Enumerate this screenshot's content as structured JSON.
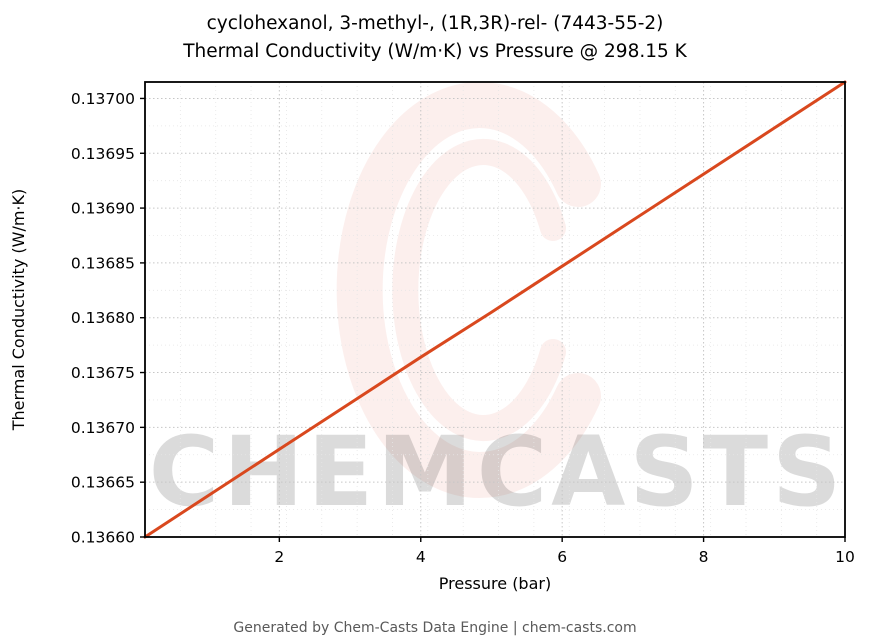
{
  "title_line1": "cyclohexanol, 3-methyl-, (1R,3R)-rel- (7443-55-2)",
  "title_line2": "Thermal Conductivity (W/m·K) vs Pressure @ 298.15 K",
  "footer": "Generated by Chem-Casts Data Engine | chem-casts.com",
  "watermark": {
    "text": "CHEMCASTS",
    "color": "#de5032",
    "text_opacity": 0.14,
    "logo_opacity": 0.09
  },
  "chart_data": {
    "type": "line",
    "title": "cyclohexanol, 3-methyl-, (1R,3R)-rel- (7443-55-2) — Thermal Conductivity (W/m·K) vs Pressure @ 298.15 K",
    "xlabel": "Pressure (bar)",
    "ylabel": "Thermal Conductivity (W/m·K)",
    "xlim": [
      0.1,
      10
    ],
    "ylim": [
      0.1366,
      0.137015
    ],
    "x_ticks": [
      2,
      4,
      6,
      8,
      10
    ],
    "x_tick_labels": [
      "2",
      "4",
      "6",
      "8",
      "10"
    ],
    "y_ticks": [
      0.1366,
      0.13665,
      0.1367,
      0.13675,
      0.1368,
      0.13685,
      0.1369,
      0.13695,
      0.137
    ],
    "y_tick_labels": [
      "0.13660",
      "0.13665",
      "0.13670",
      "0.13675",
      "0.13680",
      "0.13685",
      "0.13690",
      "0.13695",
      "0.13700"
    ],
    "x_minor_step": 0.5,
    "y_minor_step": 2.5e-05,
    "grid": true,
    "legend": false,
    "line_color": "#d9481e",
    "line_width": 3,
    "series": [
      {
        "name": "thermal_conductivity",
        "x": [
          0.1,
          1,
          2,
          3,
          4,
          5,
          6,
          7,
          8,
          9,
          10
        ],
        "y": [
          0.1366,
          0.136638,
          0.13668,
          0.136722,
          0.136764,
          0.136805,
          0.136847,
          0.136889,
          0.136931,
          0.136973,
          0.137015
        ]
      }
    ]
  }
}
